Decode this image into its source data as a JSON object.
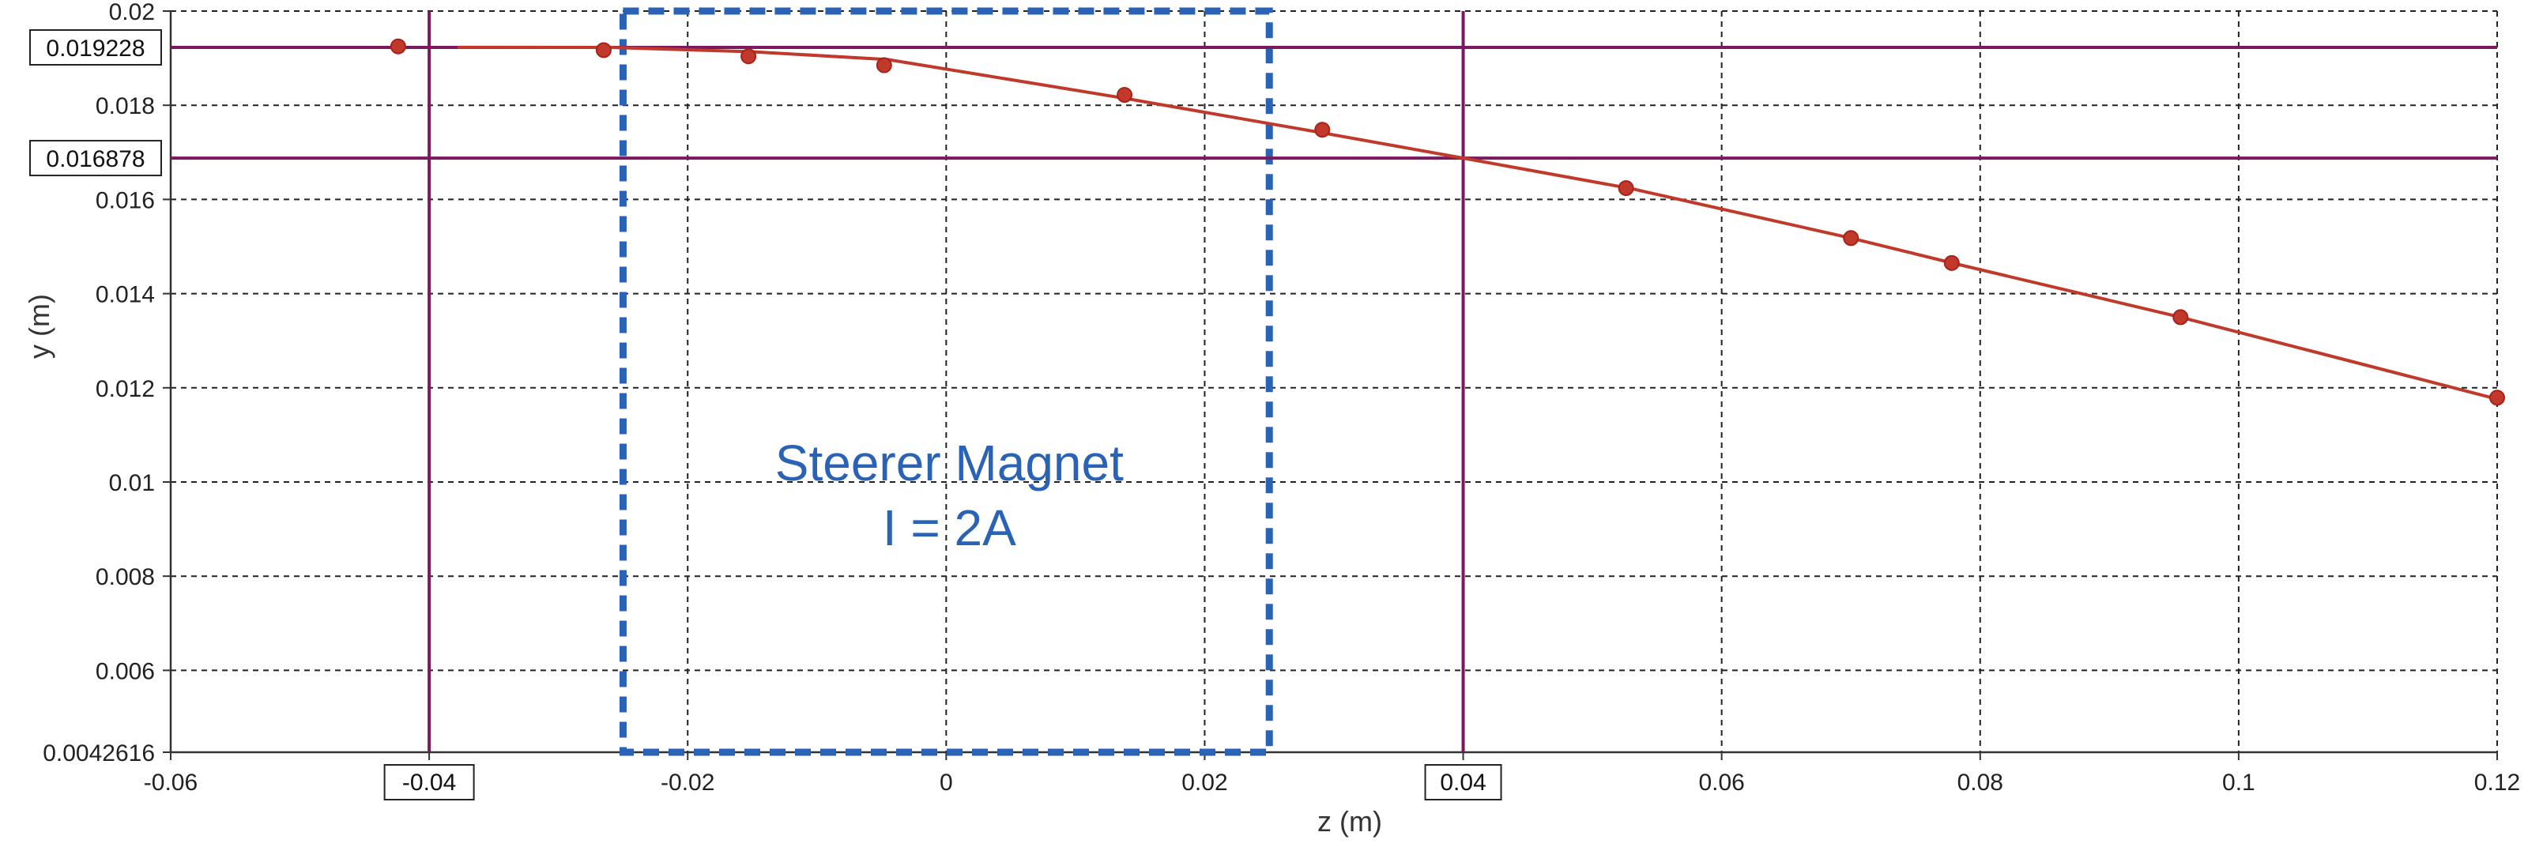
{
  "chart_data": {
    "type": "line",
    "xlabel": "z (m)",
    "ylabel": "y (m)",
    "xlim": [
      -0.06,
      0.12
    ],
    "ylim": [
      0.0042616,
      0.02
    ],
    "x_ticks": [
      {
        "value": -0.06,
        "label": "-0.06"
      },
      {
        "value": -0.04,
        "label": "-0.04"
      },
      {
        "value": -0.02,
        "label": "-0.02"
      },
      {
        "value": 0,
        "label": "0"
      },
      {
        "value": 0.02,
        "label": "0.02"
      },
      {
        "value": 0.04,
        "label": "0.04"
      },
      {
        "value": 0.06,
        "label": "0.06"
      },
      {
        "value": 0.08,
        "label": "0.08"
      },
      {
        "value": 0.1,
        "label": "0.1"
      },
      {
        "value": 0.12,
        "label": "0.12"
      }
    ],
    "y_ticks": [
      {
        "value": 0.0042616,
        "label": "0.0042616"
      },
      {
        "value": 0.006,
        "label": "0.006"
      },
      {
        "value": 0.008,
        "label": "0.008"
      },
      {
        "value": 0.01,
        "label": "0.01"
      },
      {
        "value": 0.012,
        "label": "0.012"
      },
      {
        "value": 0.014,
        "label": "0.014"
      },
      {
        "value": 0.016,
        "label": "0.016"
      },
      {
        "value": 0.018,
        "label": "0.018"
      },
      {
        "value": 0.02,
        "label": "0.02"
      }
    ],
    "grid": true,
    "cursor_lines": {
      "vertical": [
        {
          "value": -0.04,
          "label": "-0.04",
          "boxed": true
        },
        {
          "value": 0.04,
          "label": "0.04",
          "boxed": true
        }
      ],
      "horizontal": [
        {
          "value": 0.019228,
          "label": "0.019228",
          "boxed": true
        },
        {
          "value": 0.016878,
          "label": "0.016878",
          "boxed": true
        }
      ]
    },
    "series": [
      {
        "x": [
          -0.0378,
          -0.026,
          -0.015,
          -0.0045,
          0.014,
          0.029,
          0.04,
          0.053,
          0.07,
          0.078,
          0.0955,
          0.12
        ],
        "y": [
          0.01923,
          0.019228,
          0.019136,
          0.01897,
          0.01814,
          0.01742,
          0.016878,
          0.01623,
          0.01518,
          0.01464,
          0.0135,
          0.01176
        ],
        "points": [
          {
            "x": -0.0424,
            "y": 0.01925
          },
          {
            "x": -0.0265,
            "y": 0.01917
          },
          {
            "x": -0.0153,
            "y": 0.01904
          },
          {
            "x": -0.0048,
            "y": 0.01885
          },
          {
            "x": 0.0138,
            "y": 0.01822
          },
          {
            "x": 0.0291,
            "y": 0.01748
          },
          {
            "x": 0.0526,
            "y": 0.01624
          },
          {
            "x": 0.07,
            "y": 0.01518
          },
          {
            "x": 0.0778,
            "y": 0.01465
          },
          {
            "x": 0.0955,
            "y": 0.0135
          },
          {
            "x": 0.12,
            "y": 0.01179
          }
        ],
        "color": "#c0392b"
      }
    ],
    "region": {
      "x_range": [
        -0.025,
        0.025
      ],
      "y_range": [
        0.0042616,
        0.02
      ],
      "style": "dashed",
      "color": "#2a62b5",
      "label_lines": [
        "Steerer Magnet",
        "I = 2A"
      ]
    },
    "colors": {
      "cursor": "#7a1a5e",
      "grid": "#222222",
      "curve": "#c0392b",
      "region": "#2a62b5"
    }
  }
}
